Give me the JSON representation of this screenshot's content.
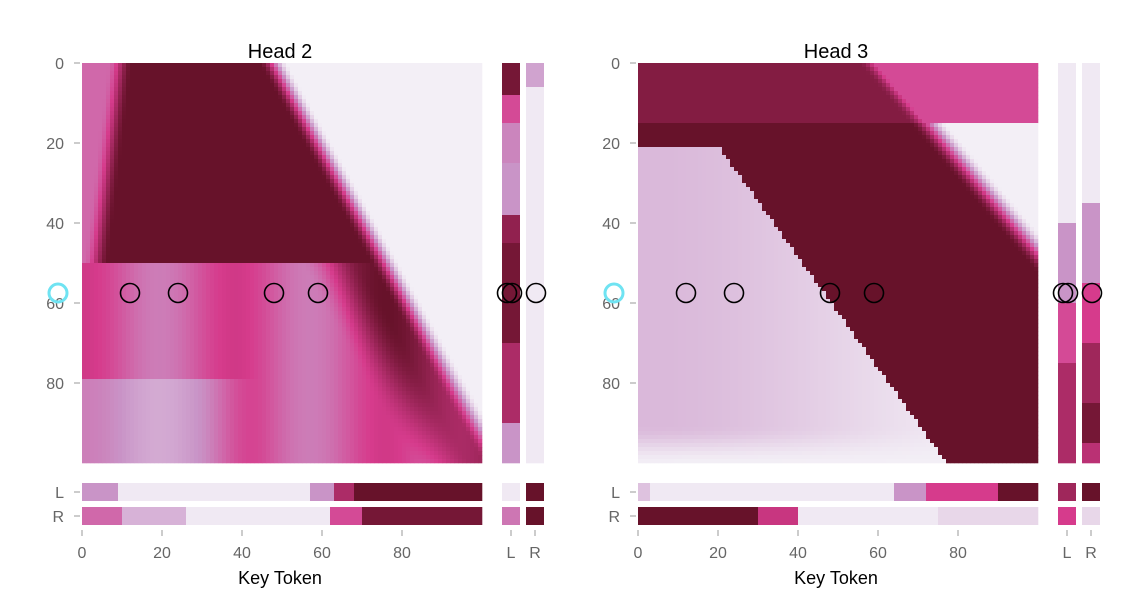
{
  "chart_data": [
    {
      "type": "heatmap",
      "title": "Head 2",
      "xlabel": "Key Token",
      "ylabel": "",
      "x_ticks": [
        "0",
        "20",
        "40",
        "60",
        "80"
      ],
      "y_ticks": [
        "0",
        "20",
        "40",
        "60",
        "80"
      ],
      "x_range": [
        0,
        100
      ],
      "y_range": [
        0,
        100
      ],
      "side_column_labels": [
        "L",
        "R"
      ],
      "bottom_row_labels": [
        "L",
        "R"
      ],
      "highlighted_query": 59,
      "marked_keys": [
        12,
        24,
        48,
        59
      ],
      "colormap": {
        "low": "#f3eff6",
        "mid_low": "#c994c7",
        "mid": "#d63b8c",
        "high": "#67122a"
      }
    },
    {
      "type": "heatmap",
      "title": "Head 3",
      "xlabel": "Key Token",
      "ylabel": "",
      "x_ticks": [
        "0",
        "20",
        "40",
        "60",
        "80"
      ],
      "y_ticks": [
        "0",
        "20",
        "40",
        "60",
        "80"
      ],
      "x_range": [
        0,
        100
      ],
      "y_range": [
        0,
        100
      ],
      "side_column_labels": [
        "L",
        "R"
      ],
      "bottom_row_labels": [
        "L",
        "R"
      ],
      "highlighted_query": 59,
      "marked_keys": [
        12,
        24,
        48,
        59
      ],
      "colormap": {
        "low": "#f3eff6",
        "mid_low": "#c994c7",
        "mid": "#d63b8c",
        "high": "#67122a"
      }
    }
  ],
  "colors": {
    "marker": "#000000",
    "query_marker": "#6fe3f2"
  }
}
